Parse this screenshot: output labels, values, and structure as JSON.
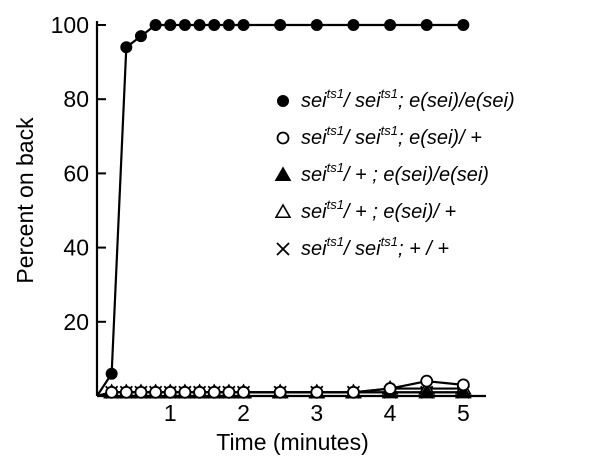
{
  "chart_data": {
    "type": "line",
    "xlabel": "Time (minutes)",
    "ylabel": "Percent on back",
    "xlim": [
      0,
      5.2
    ],
    "ylim": [
      0,
      100
    ],
    "xticks": [
      1,
      2,
      3,
      4,
      5
    ],
    "yticks": [
      20,
      40,
      60,
      80,
      100
    ],
    "legend_position": "right",
    "series": [
      {
        "marker": "filled-circle",
        "label_parts": [
          "sei",
          "ts1",
          "/ sei",
          "ts1",
          "; e(sei)/e(sei)"
        ],
        "x": [
          0.2,
          0.4,
          0.6,
          0.8,
          1.0,
          1.2,
          1.4,
          1.6,
          1.8,
          2.0,
          2.5,
          3.0,
          3.5,
          4.0,
          4.5,
          5.0
        ],
        "y": [
          6,
          94,
          97,
          100,
          100,
          100,
          100,
          100,
          100,
          100,
          100,
          100,
          100,
          100,
          100,
          100
        ]
      },
      {
        "marker": "open-circle",
        "label_parts": [
          "sei",
          "ts1",
          "/ sei",
          "ts1",
          "; e(sei)/ +"
        ],
        "x": [
          0.2,
          0.4,
          0.6,
          0.8,
          1.0,
          1.2,
          1.4,
          1.6,
          1.8,
          2.0,
          2.5,
          3.0,
          3.5,
          4.0,
          4.5,
          5.0
        ],
        "y": [
          1,
          1,
          1,
          1,
          1,
          1,
          1,
          1,
          1,
          1,
          1,
          1,
          1,
          2,
          4,
          3
        ]
      },
      {
        "marker": "filled-triangle",
        "label_parts": [
          "sei",
          "ts1",
          "/ +",
          "",
          "     ; e(sei)/e(sei)"
        ],
        "x": [
          0.2,
          0.4,
          0.6,
          0.8,
          1.0,
          1.2,
          1.4,
          1.6,
          1.8,
          2.0,
          2.5,
          3.0,
          3.5,
          4.0,
          4.5,
          5.0
        ],
        "y": [
          1,
          1,
          1,
          1,
          1,
          1,
          1,
          1,
          1,
          1,
          1,
          1,
          1,
          1,
          1,
          1
        ]
      },
      {
        "marker": "open-triangle",
        "label_parts": [
          "sei",
          "ts1",
          "/ +",
          "",
          "     ; e(sei)/ +"
        ],
        "x": [
          0.2,
          0.4,
          0.6,
          0.8,
          1.0,
          1.2,
          1.4,
          1.6,
          1.8,
          2.0,
          2.5,
          3.0,
          3.5,
          4.0,
          4.5,
          5.0
        ],
        "y": [
          1,
          1,
          1,
          1,
          1,
          1,
          1,
          1,
          1,
          1,
          1,
          1,
          1,
          2,
          2,
          2
        ]
      },
      {
        "marker": "cross",
        "label_parts": [
          "sei",
          "ts1",
          "/ sei",
          "ts1",
          ";       + / +"
        ],
        "x": [
          0.2,
          0.4,
          0.6,
          0.8,
          1.0,
          1.2,
          1.4,
          1.6,
          1.8,
          2.0,
          2.5,
          3.0,
          3.5,
          4.0,
          4.5,
          5.0
        ],
        "y": [
          1,
          1,
          1,
          1,
          1,
          1,
          1,
          1,
          1,
          1,
          1,
          1,
          1,
          1,
          1,
          1
        ]
      }
    ]
  }
}
